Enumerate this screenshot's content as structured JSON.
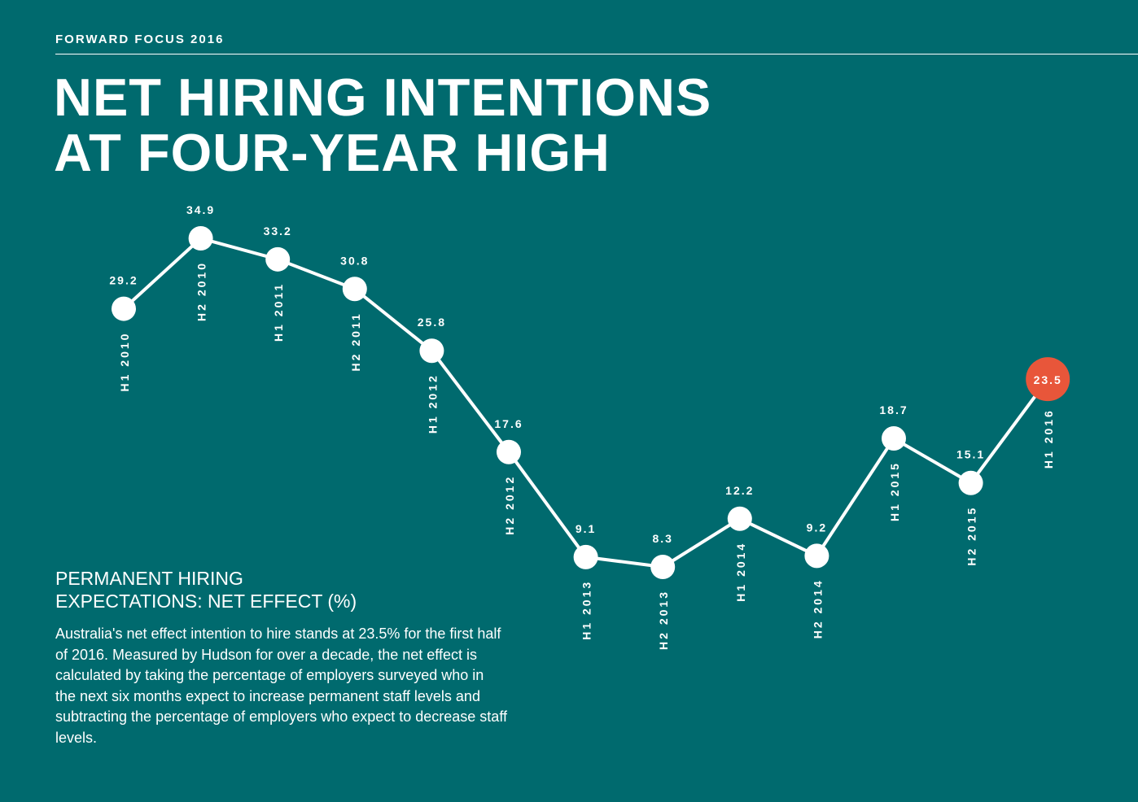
{
  "header": {
    "eyebrow": "FORWARD FOCUS 2016",
    "title_line1": "NET HIRING INTENTIONS",
    "title_line2": "AT FOUR-YEAR HIGH"
  },
  "panel": {
    "heading_line1": "PERMANENT HIRING",
    "heading_line2": "EXPECTATIONS: NET EFFECT (%)",
    "body": "Australia's net effect intention to hire stands at 23.5% for the first half of 2016. Measured by Hudson for over a decade, the net effect is calculated by taking the percentage of employers surveyed who in the next six months expect to increase permanent staff levels and subtracting the percentage of employers who expect to decrease staff levels."
  },
  "colors": {
    "background": "#006a6e",
    "line": "#ffffff",
    "highlight": "#e8563a"
  },
  "chart_data": {
    "type": "line",
    "title": "PERMANENT HIRING EXPECTATIONS: NET EFFECT (%)",
    "categories": [
      "H1 2010",
      "H2 2010",
      "H1 2011",
      "H2 2011",
      "H1 2012",
      "H2 2012",
      "H1 2013",
      "H2 2013",
      "H1 2014",
      "H2 2014",
      "H1 2015",
      "H2 2015",
      "H1 2016"
    ],
    "series": [
      {
        "values": [
          29.2,
          34.9,
          33.2,
          30.8,
          25.8,
          17.6,
          9.1,
          8.3,
          12.2,
          9.2,
          18.7,
          15.1,
          23.5
        ],
        "labels": [
          "29.2",
          "34.9",
          "33.2",
          "30.8",
          "25.8",
          "17.6",
          "9.1",
          "8.3",
          "12.2",
          "9.2",
          "18.7",
          "15.1",
          "23.5"
        ]
      }
    ],
    "highlight_index": 12,
    "grid": false,
    "axes_visible": false
  }
}
